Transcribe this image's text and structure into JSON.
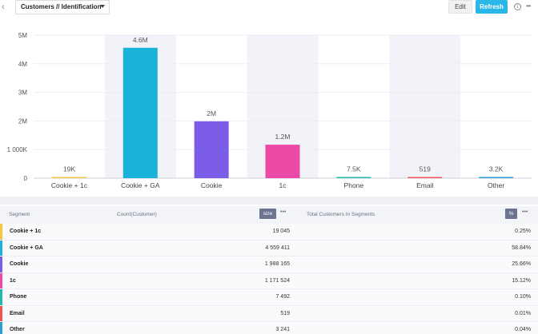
{
  "header": {
    "back_icon": "‹",
    "dashboard_title": "Customers // Identification",
    "edit_label": "Edit",
    "refresh_label": "Refresh",
    "info_icon": "i",
    "more_icon": "•••"
  },
  "chart_data": {
    "type": "bar",
    "categories": [
      "Cookie + 1c",
      "Cookie + GA",
      "Cookie",
      "1c",
      "Phone",
      "Email",
      "Other"
    ],
    "values": [
      19045,
      4559411,
      1988165,
      1171524,
      7492,
      519,
      3241
    ],
    "value_labels": [
      "19K",
      "4.6M",
      "2M",
      "1.2M",
      "7.5K",
      "519",
      "3.2K"
    ],
    "colors": [
      "#f5c542",
      "#1ab2d9",
      "#7b5ce6",
      "#ec4aa7",
      "#23b8b0",
      "#f05454",
      "#2a9fd6"
    ],
    "y_ticks": [
      0,
      1000000,
      2000000,
      3000000,
      4000000,
      5000000
    ],
    "y_tick_labels": [
      "0",
      "1 000K",
      "2M",
      "3M",
      "4M",
      "5M"
    ],
    "ylim": [
      0,
      5000000
    ],
    "grid": true,
    "shaded_columns": [
      1,
      3,
      5
    ]
  },
  "table": {
    "headers": {
      "segment": "Segment",
      "count": "Count(Customer)",
      "size_chip": "size",
      "total": "Total Customers In Segments",
      "pct_chip": "%",
      "more": "•••"
    },
    "rows": [
      {
        "segment": "Cookie + 1c",
        "count": "19 045",
        "pct": "0.25%",
        "color": "#f5c542"
      },
      {
        "segment": "Cookie + GA",
        "count": "4 559 411",
        "pct": "58.84%",
        "color": "#1ab2d9"
      },
      {
        "segment": "Cookie",
        "count": "1 988 165",
        "pct": "25.66%",
        "color": "#7b5ce6"
      },
      {
        "segment": "1c",
        "count": "1 171 524",
        "pct": "15.12%",
        "color": "#ec4aa7"
      },
      {
        "segment": "Phone",
        "count": "7 492",
        "pct": "0.10%",
        "color": "#23b8b0"
      },
      {
        "segment": "Email",
        "count": "519",
        "pct": "0.01%",
        "color": "#f05454"
      },
      {
        "segment": "Other",
        "count": "3 241",
        "pct": "0.04%",
        "color": "#2a9fd6"
      }
    ]
  }
}
